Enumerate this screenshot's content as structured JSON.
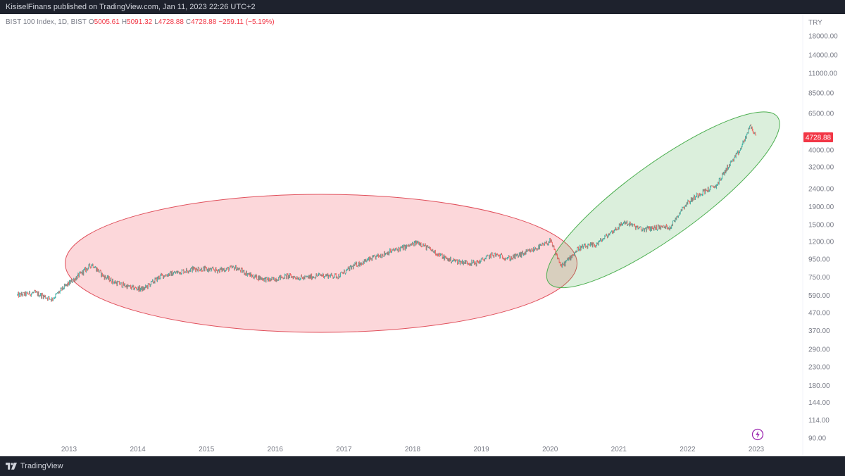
{
  "header": {
    "publish_text": "KisiselFinans published on TradingView.com, Jan 11, 2023 22:26 UTC+2"
  },
  "legend": {
    "symbol": "BIST 100 Index, 1D, BIST",
    "o_label": "O",
    "o_value": "5005.61",
    "h_label": "H",
    "h_value": "5091.32",
    "l_label": "L",
    "l_value": "4728.88",
    "c_label": "C",
    "c_value": "4728.88",
    "change": "−259.11 (−5.19%)"
  },
  "footer": {
    "brand": "TradingView",
    "logo_icon": "tradingview-logo-icon"
  },
  "colors": {
    "up": "#26a69a",
    "down": "#ef5350",
    "red_ellipse_fill": "rgba(242,54,69,0.20)",
    "red_ellipse_stroke": "#e04f5b",
    "green_ellipse_fill": "rgba(76,175,80,0.20)",
    "green_ellipse_stroke": "#4caf50",
    "price_badge": "#f23645",
    "axis_text": "#787b86"
  },
  "chart_data": {
    "type": "candlestick",
    "y_scale": "log",
    "currency_label": "TRY",
    "y_ticks": [
      "18000.00",
      "14000.00",
      "11000.00",
      "8500.00",
      "6500.00",
      "4000.00",
      "3200.00",
      "2400.00",
      "1900.00",
      "1500.00",
      "1200.00",
      "950.00",
      "750.00",
      "590.00",
      "470.00",
      "370.00",
      "290.00",
      "230.00",
      "180.00",
      "144.00",
      "114.00",
      "90.00"
    ],
    "x_ticks": [
      "2013",
      "2014",
      "2015",
      "2016",
      "2017",
      "2018",
      "2019",
      "2020",
      "2021",
      "2022",
      "2023"
    ],
    "last_price_label": "4728.88",
    "price_path": [
      [
        "2012-04",
        590
      ],
      [
        "2012-07",
        610
      ],
      [
        "2012-10",
        560
      ],
      [
        "2012-12",
        650
      ],
      [
        "2013-03",
        780
      ],
      [
        "2013-05",
        890
      ],
      [
        "2013-07",
        760
      ],
      [
        "2013-09",
        700
      ],
      [
        "2013-12",
        650
      ],
      [
        "2014-02",
        640
      ],
      [
        "2014-05",
        760
      ],
      [
        "2014-08",
        800
      ],
      [
        "2014-11",
        840
      ],
      [
        "2015-03",
        820
      ],
      [
        "2015-06",
        850
      ],
      [
        "2015-09",
        760
      ],
      [
        "2015-12",
        720
      ],
      [
        "2016-03",
        760
      ],
      [
        "2016-06",
        740
      ],
      [
        "2016-09",
        770
      ],
      [
        "2016-12",
        760
      ],
      [
        "2017-03",
        880
      ],
      [
        "2017-06",
        960
      ],
      [
        "2017-09",
        1050
      ],
      [
        "2017-12",
        1120
      ],
      [
        "2018-02",
        1190
      ],
      [
        "2018-04",
        1080
      ],
      [
        "2018-07",
        950
      ],
      [
        "2018-09",
        920
      ],
      [
        "2018-12",
        900
      ],
      [
        "2019-03",
        1010
      ],
      [
        "2019-06",
        960
      ],
      [
        "2019-09",
        1040
      ],
      [
        "2019-12",
        1150
      ],
      [
        "2020-01",
        1210
      ],
      [
        "2020-03",
        860
      ],
      [
        "2020-06",
        1100
      ],
      [
        "2020-09",
        1150
      ],
      [
        "2020-11",
        1300
      ],
      [
        "2021-02",
        1550
      ],
      [
        "2021-05",
        1400
      ],
      [
        "2021-08",
        1450
      ],
      [
        "2021-10",
        1450
      ],
      [
        "2021-12",
        1850
      ],
      [
        "2022-01",
        2000
      ],
      [
        "2022-03",
        2250
      ],
      [
        "2022-06",
        2500
      ],
      [
        "2022-08",
        3200
      ],
      [
        "2022-10",
        3900
      ],
      [
        "2022-12",
        5500
      ],
      [
        "2023-01",
        4728.88
      ]
    ],
    "annotations": [
      {
        "shape": "ellipse",
        "color": "red",
        "from": "2013-05",
        "to": "2020-03"
      },
      {
        "shape": "ellipse",
        "color": "green",
        "from": "2020-03",
        "to": "2023-01"
      }
    ]
  }
}
